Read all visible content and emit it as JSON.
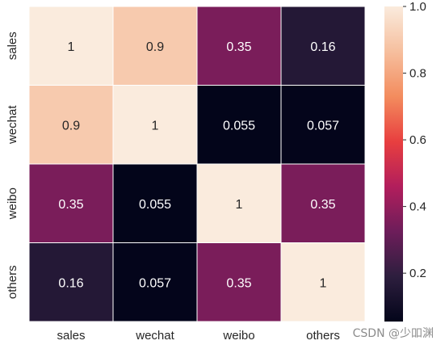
{
  "chart_data": {
    "type": "heatmap",
    "title": "",
    "xlabel": "",
    "ylabel": "",
    "x_categories": [
      "sales",
      "wechat",
      "weibo",
      "others"
    ],
    "y_categories": [
      "sales",
      "wechat",
      "weibo",
      "others"
    ],
    "values": [
      [
        1,
        0.9,
        0.35,
        0.16
      ],
      [
        0.9,
        1,
        0.055,
        0.057
      ],
      [
        0.35,
        0.055,
        1,
        0.35
      ],
      [
        0.16,
        0.057,
        0.35,
        1
      ]
    ],
    "value_labels": [
      [
        "1",
        "0.9",
        "0.35",
        "0.16"
      ],
      [
        "0.9",
        "1",
        "0.055",
        "0.057"
      ],
      [
        "0.35",
        "0.055",
        "1",
        "0.35"
      ],
      [
        "0.16",
        "0.057",
        "0.35",
        "1"
      ]
    ],
    "colorbar": {
      "range": [
        0.055,
        1.0
      ],
      "ticks": [
        0.2,
        0.4,
        0.6,
        0.8,
        1.0
      ],
      "tick_labels": [
        "0.2",
        "0.4",
        "0.6",
        "0.8",
        "1.0"
      ],
      "colormap": "rocket",
      "stops": [
        "#03051a",
        "#2d1e3e",
        "#6d1d5a",
        "#b21e5c",
        "#e83f3f",
        "#f38c5e",
        "#f6bf9e",
        "#faebdd"
      ]
    },
    "grid": false,
    "legend": "right colorbar"
  },
  "watermark": "CSDN @少吅渊"
}
